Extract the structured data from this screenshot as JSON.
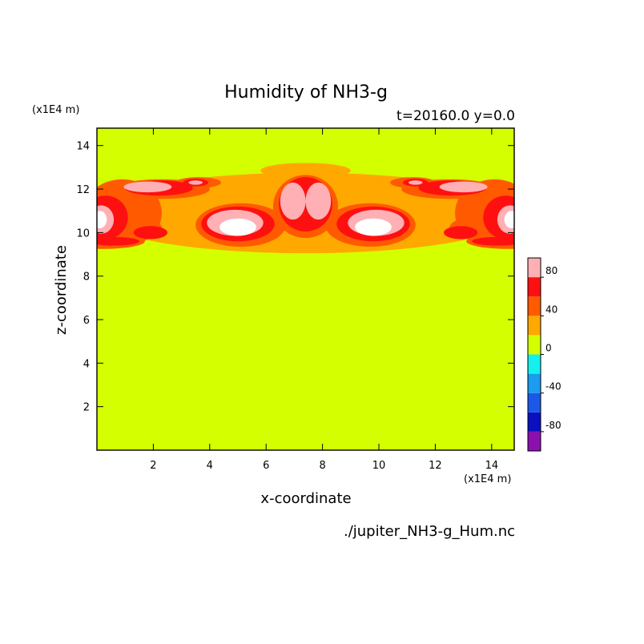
{
  "chart_data": {
    "type": "heatmap",
    "title": "Humidity of NH3-g",
    "subtitle": "t=20160.0 y=0.0",
    "xlabel": "x-coordinate",
    "ylabel": "z-coordinate",
    "x_unit": "(x1E4 m)",
    "y_unit": "(x1E4 m)",
    "xlim": [
      0,
      14.8
    ],
    "ylim": [
      0,
      14.8
    ],
    "x_ticks": [
      2,
      4,
      6,
      8,
      10,
      12,
      14
    ],
    "y_ticks": [
      2,
      4,
      6,
      8,
      10,
      12,
      14
    ],
    "source_file": "./jupiter_NH3-g_Hum.nc",
    "colorbar": {
      "levels": [
        -100,
        -80,
        -60,
        -40,
        -20,
        0,
        20,
        40,
        60,
        80,
        100
      ],
      "colors": [
        "#8c10b0",
        "#0a10c0",
        "#1a58e8",
        "#1a9cf0",
        "#14f0f0",
        "#d4ff00",
        "#ffa800",
        "#ff5a00",
        "#ff1010",
        "#ffb0b4"
      ],
      "tick_labels": [
        "-80",
        "-40",
        "0",
        "40",
        "80"
      ],
      "tick_values": [
        -80,
        -40,
        0,
        40,
        80
      ]
    },
    "background_value": 10,
    "layers": [
      {
        "value": 30,
        "blobs": [
          {
            "x": 7.4,
            "z": 10.9,
            "rx": 7.6,
            "rz": 1.85
          },
          {
            "x": 7.4,
            "z": 12.85,
            "rx": 1.6,
            "rz": 0.35
          }
        ]
      },
      {
        "value": 50,
        "blobs": [
          {
            "x": 0.9,
            "z": 10.9,
            "rx": 1.4,
            "rz": 1.55
          },
          {
            "x": 14.1,
            "z": 10.9,
            "rx": 1.4,
            "rz": 1.55
          },
          {
            "x": 1.5,
            "z": 10.2,
            "rx": 0.8,
            "rz": 0.5
          },
          {
            "x": 13.3,
            "z": 10.2,
            "rx": 0.8,
            "rz": 0.5
          },
          {
            "x": 0.2,
            "z": 9.6,
            "rx": 1.5,
            "rz": 0.35
          },
          {
            "x": 14.6,
            "z": 9.6,
            "rx": 1.5,
            "rz": 0.35
          },
          {
            "x": 2.3,
            "z": 12.0,
            "rx": 1.7,
            "rz": 0.45
          },
          {
            "x": 12.5,
            "z": 12.0,
            "rx": 1.7,
            "rz": 0.45
          },
          {
            "x": 5.1,
            "z": 10.35,
            "rx": 1.6,
            "rz": 1.0
          },
          {
            "x": 9.7,
            "z": 10.35,
            "rx": 1.6,
            "rz": 1.0
          },
          {
            "x": 7.4,
            "z": 11.2,
            "rx": 1.15,
            "rz": 1.45
          },
          {
            "x": 3.6,
            "z": 12.3,
            "rx": 0.8,
            "rz": 0.25
          },
          {
            "x": 11.2,
            "z": 12.3,
            "rx": 0.8,
            "rz": 0.25
          }
        ]
      },
      {
        "value": 70,
        "blobs": [
          {
            "x": 0.3,
            "z": 10.7,
            "rx": 0.8,
            "rz": 1.0
          },
          {
            "x": 14.5,
            "z": 10.7,
            "rx": 0.8,
            "rz": 1.0
          },
          {
            "x": 1.9,
            "z": 10.0,
            "rx": 0.6,
            "rz": 0.3
          },
          {
            "x": 12.9,
            "z": 10.0,
            "rx": 0.6,
            "rz": 0.3
          },
          {
            "x": 2.2,
            "z": 12.05,
            "rx": 1.2,
            "rz": 0.35
          },
          {
            "x": 12.6,
            "z": 12.05,
            "rx": 1.2,
            "rz": 0.35
          },
          {
            "x": 5.0,
            "z": 10.4,
            "rx": 1.3,
            "rz": 0.8
          },
          {
            "x": 9.8,
            "z": 10.4,
            "rx": 1.3,
            "rz": 0.8
          },
          {
            "x": 7.4,
            "z": 11.3,
            "rx": 0.95,
            "rz": 1.25
          },
          {
            "x": 0.6,
            "z": 9.6,
            "rx": 0.9,
            "rz": 0.2
          },
          {
            "x": 14.2,
            "z": 9.6,
            "rx": 0.9,
            "rz": 0.2
          },
          {
            "x": 3.5,
            "z": 12.3,
            "rx": 0.45,
            "rz": 0.18
          },
          {
            "x": 11.3,
            "z": 12.3,
            "rx": 0.45,
            "rz": 0.18
          }
        ]
      },
      {
        "value": 90,
        "blobs": [
          {
            "x": 0.15,
            "z": 10.6,
            "rx": 0.45,
            "rz": 0.65
          },
          {
            "x": 14.65,
            "z": 10.6,
            "rx": 0.45,
            "rz": 0.65
          },
          {
            "x": 1.8,
            "z": 12.1,
            "rx": 0.85,
            "rz": 0.25
          },
          {
            "x": 13.0,
            "z": 12.1,
            "rx": 0.85,
            "rz": 0.25
          },
          {
            "x": 4.9,
            "z": 10.45,
            "rx": 1.0,
            "rz": 0.6
          },
          {
            "x": 9.9,
            "z": 10.45,
            "rx": 1.0,
            "rz": 0.6
          },
          {
            "x": 6.95,
            "z": 11.45,
            "rx": 0.45,
            "rz": 0.85
          },
          {
            "x": 7.85,
            "z": 11.45,
            "rx": 0.45,
            "rz": 0.85
          },
          {
            "x": 3.5,
            "z": 12.3,
            "rx": 0.25,
            "rz": 0.1
          },
          {
            "x": 11.3,
            "z": 12.3,
            "rx": 0.25,
            "rz": 0.1
          }
        ]
      },
      {
        "value": 105,
        "blobs": [
          {
            "x": 0.1,
            "z": 10.6,
            "rx": 0.25,
            "rz": 0.4
          },
          {
            "x": 14.7,
            "z": 10.6,
            "rx": 0.25,
            "rz": 0.4
          },
          {
            "x": 5.0,
            "z": 10.25,
            "rx": 0.65,
            "rz": 0.4
          },
          {
            "x": 9.8,
            "z": 10.25,
            "rx": 0.65,
            "rz": 0.4
          }
        ]
      }
    ]
  }
}
